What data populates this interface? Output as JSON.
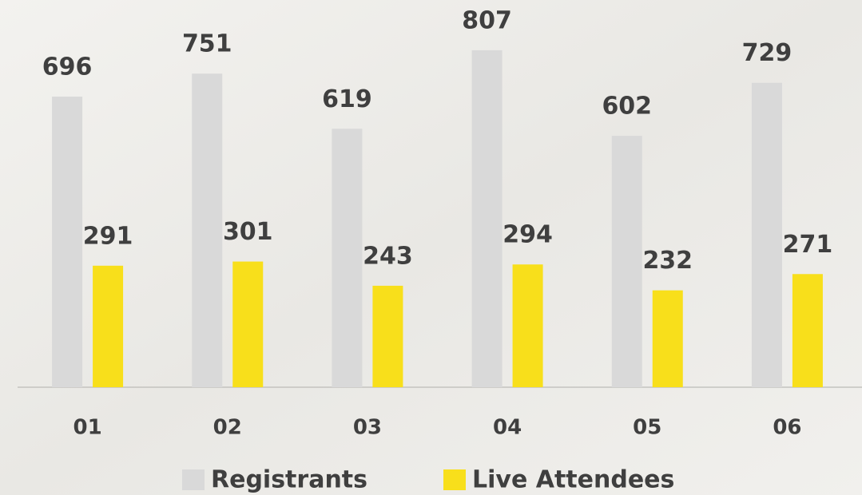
{
  "chart_data": {
    "type": "bar",
    "categories": [
      "01",
      "02",
      "03",
      "04",
      "05",
      "06"
    ],
    "series": [
      {
        "name": "Registrants",
        "color": "#d9d9d9",
        "values": [
          696,
          751,
          619,
          807,
          602,
          729
        ]
      },
      {
        "name": "Live Attendees",
        "color": "#f8df1b",
        "values": [
          291,
          301,
          243,
          294,
          232,
          271
        ]
      }
    ],
    "data_labels": true,
    "legend": "bottom"
  }
}
